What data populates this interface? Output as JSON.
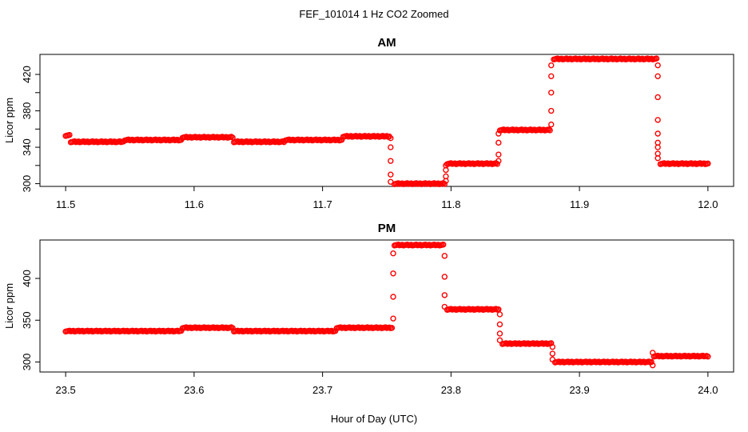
{
  "figure": {
    "title": "FEF_101014  1 Hz CO2 Zoomed",
    "xlabel": "Hour of Day (UTC)"
  },
  "chart_data": [
    {
      "type": "scatter",
      "title": "AM",
      "ylabel": "Licor ppm",
      "xlim": [
        11.48,
        12.02
      ],
      "ylim": [
        297,
        442
      ],
      "xticks": [
        "11.5",
        "11.6",
        "11.7",
        "11.8",
        "11.9",
        "12.0"
      ],
      "yticks": [
        "300",
        "340",
        "380",
        "420"
      ],
      "ytick_minor": [
        320,
        360,
        400
      ],
      "marker_color": "#ff0000",
      "series": [
        {
          "segments": [
            {
              "x0": 11.5,
              "x1": 11.503,
              "y": 353
            },
            {
              "x0": 11.504,
              "x1": 11.545,
              "y": 346
            },
            {
              "x0": 11.546,
              "x1": 11.59,
              "y": 348
            },
            {
              "x0": 11.591,
              "x1": 11.63,
              "y": 351
            },
            {
              "x0": 11.631,
              "x1": 11.67,
              "y": 346
            },
            {
              "x0": 11.671,
              "x1": 11.715,
              "y": 348
            },
            {
              "x0": 11.716,
              "x1": 11.752,
              "y": 352
            },
            {
              "x0": 11.756,
              "x1": 11.795,
              "y": 300
            },
            {
              "x0": 11.797,
              "x1": 11.836,
              "y": 322
            },
            {
              "x0": 11.838,
              "x1": 11.877,
              "y": 359
            },
            {
              "x0": 11.88,
              "x1": 11.96,
              "y": 437
            },
            {
              "x0": 11.963,
              "x1": 12.0,
              "y": 322
            }
          ],
          "transitions": [
            {
              "x": 11.753,
              "y": [
                350,
                340,
                325,
                310,
                302
              ]
            },
            {
              "x": 11.796,
              "y": [
                303,
                308,
                315,
                320
              ]
            },
            {
              "x": 11.837,
              "y": [
                325,
                332,
                345,
                355
              ]
            },
            {
              "x": 11.878,
              "y": [
                365,
                380,
                400,
                418,
                430
              ]
            },
            {
              "x": 11.961,
              "y": [
                430,
                418,
                395,
                370,
                355,
                345,
                340,
                333,
                328
              ]
            }
          ]
        }
      ]
    },
    {
      "type": "scatter",
      "title": "PM",
      "ylabel": "Licor ppm",
      "xlim": [
        23.48,
        24.02
      ],
      "ylim": [
        288,
        446
      ],
      "xticks": [
        "23.5",
        "23.6",
        "23.7",
        "23.8",
        "23.9",
        "24.0"
      ],
      "yticks": [
        "300",
        "350",
        "400"
      ],
      "ytick_minor": [],
      "marker_color": "#ff0000",
      "series": [
        {
          "segments": [
            {
              "x0": 23.5,
              "x1": 23.59,
              "y": 337
            },
            {
              "x0": 23.591,
              "x1": 23.63,
              "y": 341
            },
            {
              "x0": 23.631,
              "x1": 23.71,
              "y": 337
            },
            {
              "x0": 23.711,
              "x1": 23.754,
              "y": 341
            },
            {
              "x0": 23.756,
              "x1": 23.794,
              "y": 440
            },
            {
              "x0": 23.797,
              "x1": 23.837,
              "y": 363
            },
            {
              "x0": 23.84,
              "x1": 23.878,
              "y": 322
            },
            {
              "x0": 23.881,
              "x1": 23.956,
              "y": 300
            },
            {
              "x0": 23.958,
              "x1": 24.0,
              "y": 307
            }
          ],
          "transitions": [
            {
              "x": 23.755,
              "y": [
                352,
                378,
                406,
                430
              ]
            },
            {
              "x": 23.795,
              "y": [
                427,
                402,
                380,
                366
              ]
            },
            {
              "x": 23.838,
              "y": [
                357,
                345,
                334,
                326
              ]
            },
            {
              "x": 23.879,
              "y": [
                318,
                310,
                303
              ]
            },
            {
              "x": 23.957,
              "y": [
                296,
                311
              ]
            }
          ]
        }
      ]
    }
  ]
}
